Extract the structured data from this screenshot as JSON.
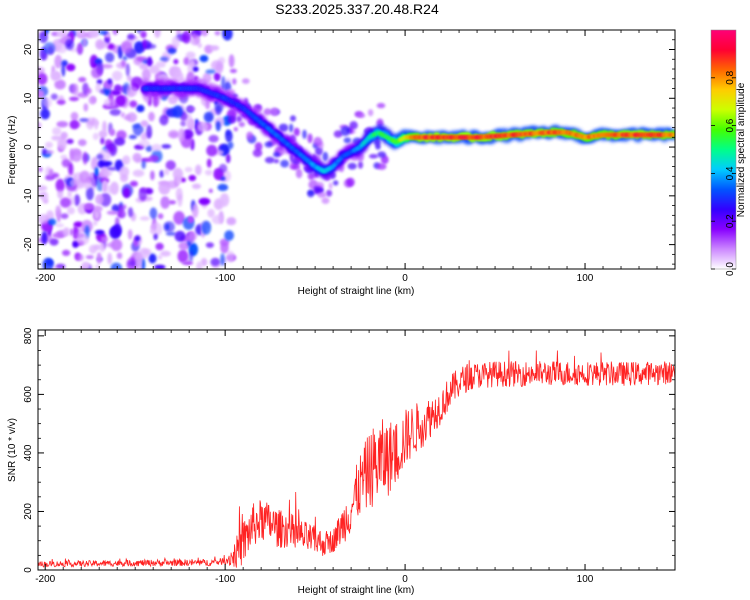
{
  "figure_title": "S233.2025.337.20.48.R24",
  "chart_data": [
    {
      "type": "heatmap",
      "title": "S233.2025.337.20.48.R24",
      "xlabel": "Height of straight line (km)",
      "ylabel": "Frequency (Hz)",
      "xlim": [
        -204,
        150
      ],
      "ylim": [
        -25,
        24
      ],
      "xticks": [
        -200,
        -100,
        0,
        100
      ],
      "yticks": [
        20,
        10,
        0,
        -10,
        -20
      ],
      "colorbar": {
        "label": "Normalized spectral amplitude",
        "range": [
          0.0,
          1.0
        ],
        "ticks": [
          0.0,
          0.2,
          0.4,
          0.6,
          0.8
        ],
        "colors": [
          "#ffffff",
          "#cc88ff",
          "#8800ff",
          "#3300ff",
          "#0055ff",
          "#00ccff",
          "#00ff88",
          "#44ff00",
          "#ccff00",
          "#ffcc00",
          "#ff6600",
          "#ff0033",
          "#ff0077"
        ]
      },
      "ridge": {
        "x": [
          -145,
          -130,
          -115,
          -100,
          -90,
          -80,
          -70,
          -60,
          -50,
          -45,
          -40,
          -35,
          -30,
          -25,
          -20,
          -15,
          -10,
          -5,
          0,
          5,
          10,
          20,
          40,
          60,
          80,
          90,
          100,
          110,
          130,
          150
        ],
        "freq": [
          12,
          12,
          12,
          10,
          8,
          5,
          2,
          -1,
          -4,
          -5,
          -4,
          -2,
          -1,
          0,
          2,
          3,
          2,
          1,
          2,
          2,
          2,
          2,
          2,
          2.5,
          3,
          3,
          2,
          2.5,
          2.5,
          2.5
        ],
        "amplitude": [
          0.3,
          0.3,
          0.3,
          0.3,
          0.3,
          0.35,
          0.35,
          0.35,
          0.4,
          0.45,
          0.4,
          0.35,
          0.35,
          0.4,
          0.5,
          0.55,
          0.55,
          0.6,
          0.75,
          0.85,
          0.9,
          0.9,
          0.9,
          0.88,
          0.88,
          0.85,
          0.85,
          0.85,
          0.9,
          0.85
        ]
      }
    },
    {
      "type": "line",
      "xlabel": "Height of straight line (km)",
      "ylabel": "SNR (10 * v/v)",
      "xlim": [
        -204,
        150
      ],
      "ylim": [
        0,
        820
      ],
      "xticks": [
        -200,
        -100,
        0,
        100
      ],
      "yticks": [
        0,
        200,
        400,
        600,
        800
      ],
      "color": "#ff2222",
      "envelope": {
        "x": [
          -204,
          -130,
          -110,
          -100,
          -95,
          -90,
          -85,
          -80,
          -75,
          -70,
          -65,
          -60,
          -55,
          -50,
          -45,
          -40,
          -35,
          -30,
          -25,
          -20,
          -15,
          -10,
          -5,
          0,
          5,
          10,
          15,
          20,
          25,
          30,
          35,
          40,
          50,
          60,
          80,
          100,
          120,
          150
        ],
        "snr": [
          20,
          25,
          25,
          30,
          50,
          90,
          150,
          170,
          160,
          140,
          140,
          120,
          110,
          100,
          90,
          100,
          150,
          210,
          290,
          340,
          370,
          380,
          400,
          450,
          480,
          500,
          530,
          560,
          610,
          640,
          660,
          665,
          670,
          670,
          672,
          672,
          670,
          675
        ]
      },
      "noise_amplitude": {
        "x": [
          -204,
          -100,
          -90,
          -60,
          -40,
          -30,
          -15,
          0,
          20,
          40,
          150
        ],
        "value": [
          10,
          12,
          80,
          60,
          40,
          90,
          150,
          100,
          60,
          45,
          40
        ]
      }
    }
  ]
}
